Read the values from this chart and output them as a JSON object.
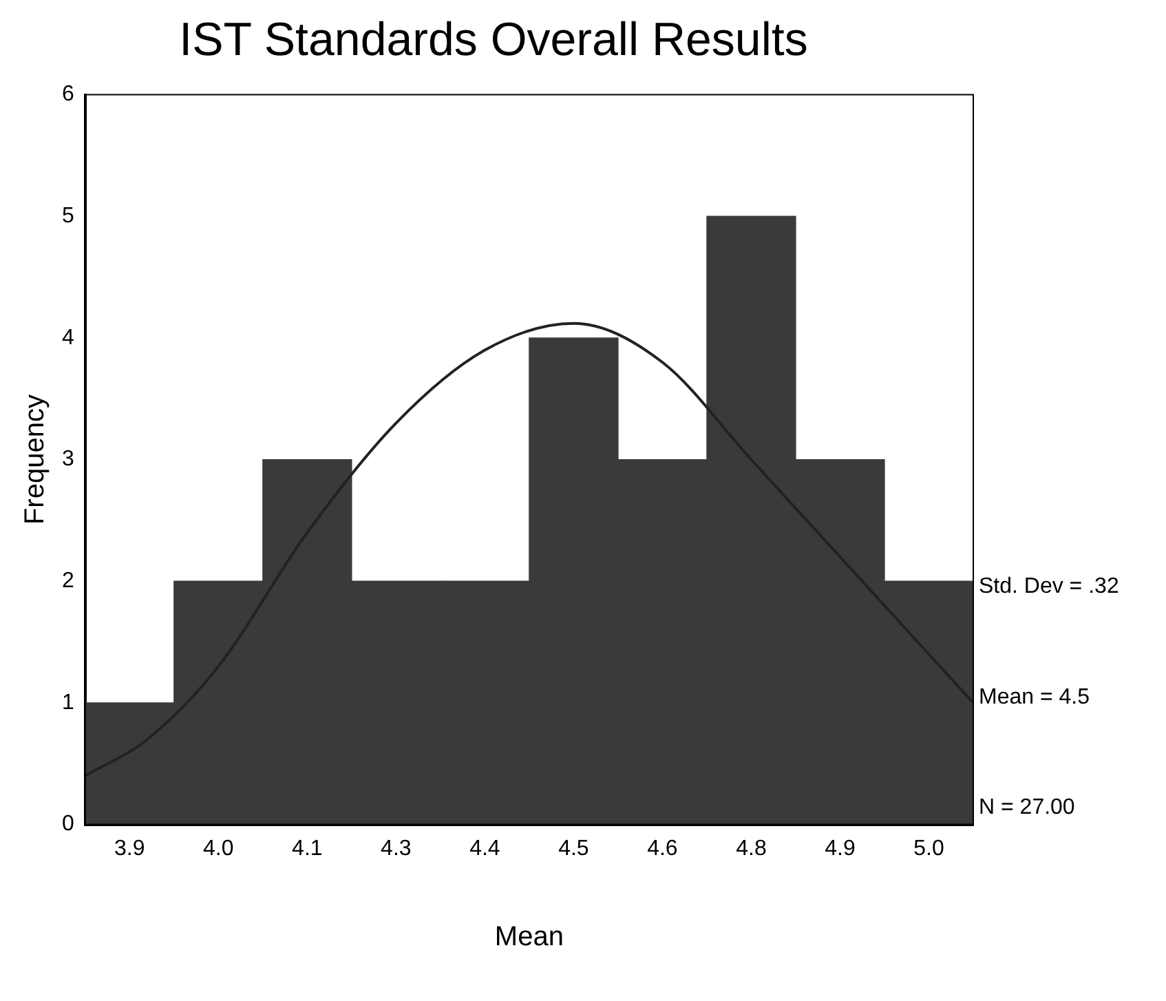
{
  "chart_data": {
    "type": "histogram",
    "title": "IST Standards Overall Results",
    "xlabel": "Mean",
    "ylabel": "Frequency",
    "bins": [
      3.8125,
      3.9375,
      4.0625,
      4.1875,
      4.3125,
      4.4375,
      4.5625,
      4.6875,
      4.8125,
      4.9375,
      5.0625
    ],
    "values": [
      1,
      2,
      3,
      2,
      2,
      4,
      3,
      5,
      3,
      2
    ],
    "color": "#3a3a3a",
    "series": [
      {
        "type": "line",
        "color": "#222222",
        "x": [
          3.8125,
          3.9,
          4.0,
          4.125,
          4.25,
          4.375,
          4.5,
          4.625,
          4.75,
          4.875,
          5.0,
          5.0625
        ],
        "values": [
          0.4,
          0.7,
          1.3,
          2.4,
          3.3,
          3.9,
          4.12,
          3.8,
          3.0,
          2.2,
          1.4,
          1.0
        ]
      }
    ],
    "xlim": [
      3.8125,
      5.0625
    ],
    "xticks": [
      {
        "value": 3.875,
        "label": "3.9"
      },
      {
        "value": 4.0,
        "label": "4.0"
      },
      {
        "value": 4.125,
        "label": "4.1"
      },
      {
        "value": 4.25,
        "label": "4.3"
      },
      {
        "value": 4.375,
        "label": "4.4"
      },
      {
        "value": 4.5,
        "label": "4.5"
      },
      {
        "value": 4.625,
        "label": "4.6"
      },
      {
        "value": 4.75,
        "label": "4.8"
      },
      {
        "value": 4.875,
        "label": "4.9"
      },
      {
        "value": 5.0,
        "label": "5.0"
      }
    ],
    "ylim": [
      0,
      6
    ],
    "yticks": [
      0,
      1,
      2,
      3,
      4,
      5,
      6
    ],
    "grid": false,
    "legend": false,
    "marker": "none",
    "line_style": "solid",
    "annotations": [
      "Std. Dev = .32",
      "Mean = 4.5",
      "N = 27.00"
    ]
  }
}
